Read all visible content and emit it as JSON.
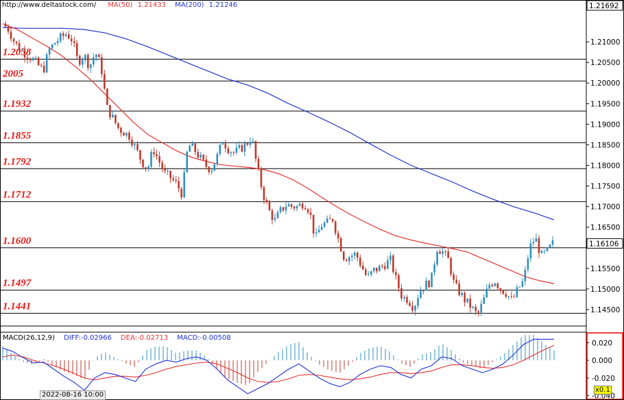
{
  "header": {
    "source": "http://www.deltastock.com/",
    "ma50_label": "MA(50)",
    "ma50_value": "1.21433",
    "ma200_label": "MA(200)",
    "ma200_value": "1.21246"
  },
  "macd_header": {
    "label": "MACD(26,12,9)",
    "diff": "DIFF:-0.02966",
    "dea": "DEA:-0.02713",
    "macd": "MACD:-0.00508"
  },
  "bottom_time_label": "2022-08-16 10:00",
  "scale_badge": "x0.1",
  "colors": {
    "up": "#2f8fbf",
    "down": "#c0392b",
    "ma50": "#e53030",
    "ma200": "#2233cc",
    "level_text": "#e41b17",
    "macd_diff": "#1a2fd6",
    "macd_dea": "#e53030",
    "macd_frame": "#e60000"
  },
  "chart_data": {
    "type": "candlestick",
    "y_range": [
      1.141,
      1.2175
    ],
    "price_ticks": [
      "1.21000",
      "1.20500",
      "1.20000",
      "1.19500",
      "1.19000",
      "1.18500",
      "1.18000",
      "1.17500",
      "1.17000",
      "1.16500",
      "1.15500",
      "1.15000",
      "1.14500"
    ],
    "top_price_label": "1.21692",
    "current_price_label": "1.16106",
    "current_price": 1.16106,
    "levels": [
      {
        "label": "1.2058",
        "value": 1.2058
      },
      {
        "label": "2005",
        "value": 1.2005
      },
      {
        "label": "1.1932",
        "value": 1.1932
      },
      {
        "label": "1.1855",
        "value": 1.1855
      },
      {
        "label": "1.1792",
        "value": 1.1792
      },
      {
        "label": "1.1712",
        "value": 1.1712
      },
      {
        "label": "1.1600",
        "value": 1.16
      },
      {
        "label": "1.1497",
        "value": 1.1497
      },
      {
        "label": "1.1441",
        "value": 1.1441
      }
    ],
    "price_path": [
      1.2144,
      1.213,
      1.21,
      1.2082,
      1.207,
      1.206,
      1.2045,
      1.203,
      1.208,
      1.2098,
      1.211,
      1.212,
      1.2105,
      1.205,
      1.207,
      1.204,
      1.2075,
      1.204,
      1.194,
      1.1915,
      1.189,
      1.188,
      1.187,
      1.184,
      1.181,
      1.179,
      1.184,
      1.181,
      1.178,
      1.177,
      1.1755,
      1.173,
      1.185,
      1.184,
      1.182,
      1.18,
      1.179,
      1.182,
      1.186,
      1.184,
      1.183,
      1.184,
      1.185,
      1.187,
      1.179,
      1.173,
      1.169,
      1.1665,
      1.169,
      1.1705,
      1.17,
      1.17,
      1.171,
      1.169,
      1.162,
      1.1655,
      1.166,
      1.167,
      1.162,
      1.1575,
      1.158,
      1.1585,
      1.1555,
      1.1525,
      1.1545,
      1.155,
      1.156,
      1.157,
      1.152,
      1.148,
      1.1475,
      1.1455,
      1.1495,
      1.151,
      1.152,
      1.16,
      1.159,
      1.157,
      1.151,
      1.149,
      1.147,
      1.1455,
      1.1435,
      1.147,
      1.151,
      1.152,
      1.15,
      1.149,
      1.147,
      1.15,
      1.152,
      1.16,
      1.1625,
      1.158,
      1.159,
      1.161
    ],
    "ma50_path": [
      1.2144,
      1.213,
      1.211,
      1.209,
      1.2068,
      1.204,
      1.201,
      1.1975,
      1.194,
      1.1905,
      1.1875,
      1.1855,
      1.1835,
      1.182,
      1.181,
      1.1802,
      1.1798,
      1.1795,
      1.179,
      1.178,
      1.1765,
      1.1745,
      1.1722,
      1.17,
      1.168,
      1.1662,
      1.1645,
      1.163,
      1.162,
      1.1612,
      1.1605,
      1.1598,
      1.159,
      1.1575,
      1.156,
      1.1545,
      1.153,
      1.152,
      1.1513
    ],
    "ma200_path": [
      1.2135,
      1.2133,
      1.2133,
      1.2133,
      1.213,
      1.2122,
      1.2108,
      1.209,
      1.207,
      1.205,
      1.203,
      1.201,
      1.1995,
      1.1975,
      1.195,
      1.1928,
      1.1905,
      1.188,
      1.1852,
      1.1825,
      1.18,
      1.178,
      1.176,
      1.1738,
      1.1718,
      1.17,
      1.1685,
      1.1668
    ],
    "macd": {
      "y_range": [
        -0.045,
        0.032
      ],
      "ticks": [
        {
          "label": "0.020",
          "value": 0.02
        },
        {
          "label": "0.000",
          "value": 0.0
        },
        {
          "label": "-0.020",
          "value": -0.02
        },
        {
          "label": "-0.040",
          "value": -0.04
        }
      ],
      "diff_path": [
        0.014,
        0.01,
        0.003,
        -0.003,
        -0.002,
        -0.01,
        -0.018,
        -0.025,
        -0.034,
        -0.02,
        -0.014,
        -0.016,
        -0.02,
        -0.024,
        -0.01,
        -0.004,
        0.0,
        -0.002,
        0.002,
        0.004,
        0.0,
        -0.01,
        -0.022,
        -0.03,
        -0.038,
        -0.032,
        -0.026,
        -0.018,
        -0.01,
        -0.004,
        -0.012,
        -0.02,
        -0.026,
        -0.03,
        -0.025,
        -0.016,
        -0.01,
        -0.006,
        -0.008,
        -0.016,
        -0.02,
        -0.01,
        -0.006,
        0.004,
        0.002,
        -0.006,
        -0.01,
        -0.014,
        -0.01,
        -0.004,
        0.006,
        0.018,
        0.024,
        0.024,
        0.024
      ],
      "dea_path": [
        0.004,
        0.006,
        0.004,
        0.0,
        -0.003,
        -0.006,
        -0.01,
        -0.015,
        -0.02,
        -0.022,
        -0.02,
        -0.018,
        -0.018,
        -0.019,
        -0.017,
        -0.014,
        -0.01,
        -0.007,
        -0.005,
        -0.003,
        -0.002,
        -0.004,
        -0.009,
        -0.014,
        -0.02,
        -0.024,
        -0.025,
        -0.024,
        -0.021,
        -0.017,
        -0.016,
        -0.017,
        -0.019,
        -0.021,
        -0.022,
        -0.021,
        -0.019,
        -0.016,
        -0.014,
        -0.014,
        -0.015,
        -0.014,
        -0.012,
        -0.008,
        -0.005,
        -0.005,
        -0.006,
        -0.008,
        -0.009,
        -0.008,
        -0.005,
        0.0,
        0.006,
        0.012,
        0.017
      ]
    }
  }
}
